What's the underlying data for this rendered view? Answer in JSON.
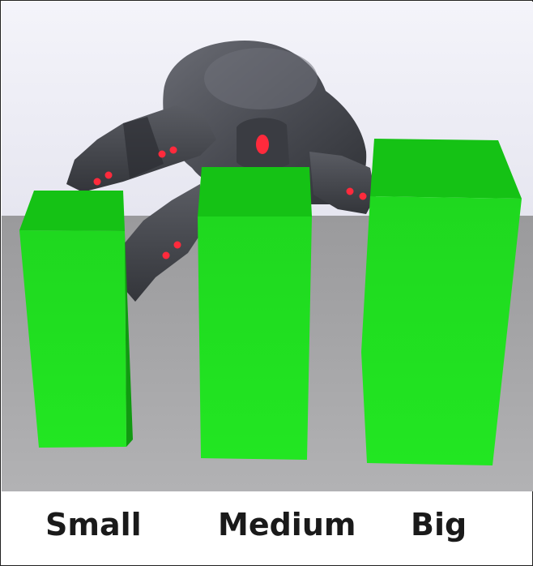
{
  "labels": {
    "small": "Small",
    "medium": "Medium",
    "big": "Big"
  },
  "colors": {
    "sky": "#eeeef6",
    "floor": "#a4a4a6",
    "block_top": "#14c014",
    "block_front": "#22e022",
    "block_side": "#129f12",
    "robot": "#4b4d54",
    "markers": "#ff2a3c"
  }
}
